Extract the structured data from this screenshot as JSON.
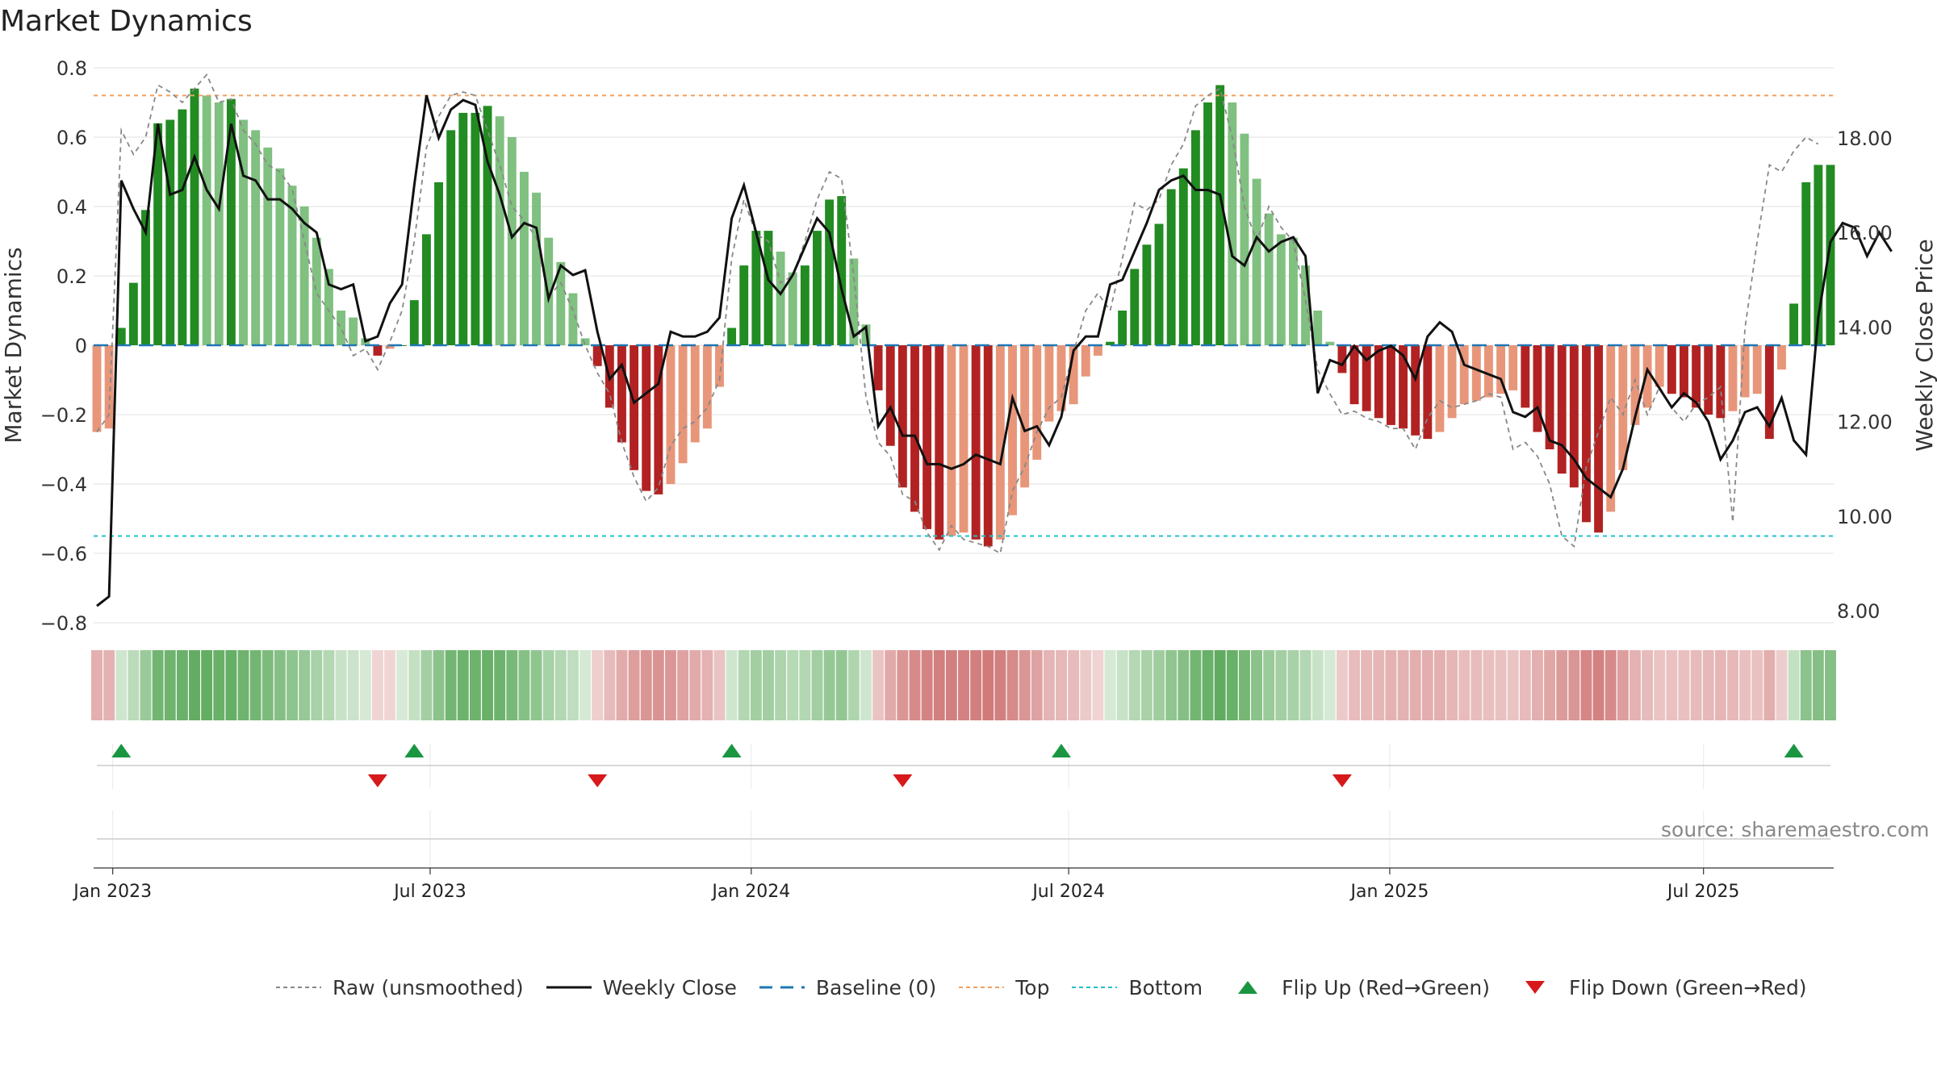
{
  "title": "Market Dynamics",
  "source": "source: sharemaestro.com",
  "colors": {
    "strong_green": "#228b22",
    "light_green": "#80c080",
    "strong_red": "#b22222",
    "light_red": "#e8967a",
    "close_line": "#111111",
    "raw_line": "#888888",
    "baseline": "#1f77b4",
    "top_line": "#f0a060",
    "bottom_line": "#22c0d0",
    "flip_up": "#1a9641",
    "flip_down": "#d7191c"
  },
  "legend": [
    {
      "key": "raw",
      "label": "Raw (unsmoothed)",
      "icon": "dashed-gray-line"
    },
    {
      "key": "close",
      "label": "Weekly Close",
      "icon": "solid-black-line"
    },
    {
      "key": "baseline",
      "label": "Baseline (0)",
      "icon": "dashed-blue-line"
    },
    {
      "key": "top",
      "label": "Top",
      "icon": "dotted-orange-line"
    },
    {
      "key": "bottom",
      "label": "Bottom",
      "icon": "dotted-cyan-line"
    },
    {
      "key": "flip_up",
      "label": "Flip Up (Red→Green)",
      "icon": "green-up-triangle"
    },
    {
      "key": "flip_down",
      "label": "Flip Down (Green→Red)",
      "icon": "red-down-triangle"
    }
  ],
  "chart_data": {
    "type": "bar",
    "title": "Market Dynamics",
    "ylabel": "Market Dynamics",
    "y2label": "Weekly Close Price",
    "ylim": [
      -0.8,
      0.8
    ],
    "y2lim": [
      8.0,
      19.0
    ],
    "yticks": [
      "0.8",
      "0.6",
      "0.4",
      "0.2",
      "0",
      "−0.2",
      "−0.4",
      "−0.6",
      "−0.8"
    ],
    "y2ticks": [
      "18.00",
      "16.00",
      "14.00",
      "12.00",
      "10.00",
      "8.00"
    ],
    "xticks": [
      "Jan 2023",
      "Jul 2023",
      "Jan 2024",
      "Jul 2024",
      "Jan 2025",
      "Jul 2025"
    ],
    "xtick_weeks": [
      1.3,
      27.3,
      53.6,
      79.6,
      105.9,
      131.6
    ],
    "top_level": 0.72,
    "bottom_level": -0.55,
    "baseline": 0,
    "grid": true,
    "legend_position": "bottom",
    "series": [
      {
        "name": "Market Dynamics",
        "values": [
          -0.25,
          -0.24,
          0.05,
          0.18,
          0.39,
          0.64,
          0.65,
          0.68,
          0.74,
          0.72,
          0.7,
          0.71,
          0.65,
          0.62,
          0.57,
          0.51,
          0.46,
          0.4,
          0.31,
          0.22,
          0.1,
          0.08,
          0.02,
          -0.03,
          -0.01,
          0.0,
          0.13,
          0.32,
          0.47,
          0.62,
          0.67,
          0.67,
          0.69,
          0.66,
          0.6,
          0.5,
          0.44,
          0.31,
          0.24,
          0.15,
          0.02,
          -0.06,
          -0.18,
          -0.28,
          -0.36,
          -0.42,
          -0.43,
          -0.4,
          -0.34,
          -0.28,
          -0.24,
          -0.12,
          0.05,
          0.23,
          0.33,
          0.33,
          0.27,
          0.21,
          0.23,
          0.33,
          0.42,
          0.43,
          0.25,
          0.06,
          -0.13,
          -0.29,
          -0.41,
          -0.48,
          -0.53,
          -0.56,
          -0.55,
          -0.54,
          -0.56,
          -0.58,
          -0.56,
          -0.49,
          -0.41,
          -0.33,
          -0.22,
          -0.19,
          -0.17,
          -0.09,
          -0.03,
          0.01,
          0.1,
          0.22,
          0.29,
          0.35,
          0.45,
          0.51,
          0.62,
          0.7,
          0.75,
          0.7,
          0.61,
          0.48,
          0.38,
          0.32,
          0.31,
          0.23,
          0.1,
          0.01,
          -0.08,
          -0.17,
          -0.19,
          -0.21,
          -0.23,
          -0.24,
          -0.26,
          -0.27,
          -0.25,
          -0.21,
          -0.17,
          -0.16,
          -0.15,
          -0.14,
          -0.13,
          -0.18,
          -0.25,
          -0.3,
          -0.37,
          -0.41,
          -0.51,
          -0.54,
          -0.48,
          -0.36,
          -0.23,
          -0.18,
          -0.12,
          -0.14,
          -0.15,
          -0.18,
          -0.2,
          -0.21,
          -0.19,
          -0.15,
          -0.14,
          -0.27,
          -0.07,
          0.12,
          0.47,
          0.52,
          0.52
        ]
      },
      {
        "name": "Weekly Close",
        "values": [
          8.1,
          8.3,
          17.1,
          16.5,
          16.0,
          18.3,
          16.8,
          16.9,
          17.6,
          16.9,
          16.5,
          18.3,
          17.2,
          17.1,
          16.7,
          16.7,
          16.5,
          16.2,
          16.0,
          14.9,
          14.8,
          14.9,
          13.7,
          13.8,
          14.5,
          14.9,
          17.0,
          18.9,
          18.0,
          18.6,
          18.8,
          18.7,
          17.5,
          16.8,
          15.9,
          16.2,
          16.1,
          14.6,
          15.3,
          15.1,
          15.2,
          13.9,
          12.9,
          13.2,
          12.4,
          12.6,
          12.8,
          13.9,
          13.8,
          13.8,
          13.9,
          14.2,
          16.3,
          17.0,
          16.0,
          15.0,
          14.7,
          15.1,
          15.7,
          16.3,
          16.0,
          14.8,
          13.8,
          14.0,
          11.9,
          12.3,
          11.7,
          11.7,
          11.1,
          11.1,
          11.0,
          11.1,
          11.3,
          11.2,
          11.1,
          12.5,
          11.8,
          11.9,
          11.5,
          12.1,
          13.5,
          13.8,
          13.8,
          14.9,
          15.0,
          15.6,
          16.2,
          16.9,
          17.1,
          17.2,
          16.9,
          16.9,
          16.8,
          15.5,
          15.3,
          15.9,
          15.6,
          15.8,
          15.9,
          15.5,
          12.6,
          13.3,
          13.2,
          13.6,
          13.3,
          13.5,
          13.6,
          13.4,
          12.9,
          13.8,
          14.1,
          13.9,
          13.2,
          13.1,
          13.0,
          12.9,
          12.2,
          12.1,
          12.3,
          11.6,
          11.5,
          11.2,
          10.8,
          10.6,
          10.4,
          11.0,
          12.1,
          13.1,
          12.7,
          12.3,
          12.6,
          12.4,
          12.0,
          11.2,
          11.6,
          12.2,
          12.3,
          11.9,
          12.5,
          11.6,
          11.3,
          14.2,
          15.8,
          16.2,
          16.1,
          15.5,
          16.0,
          15.6
        ]
      },
      {
        "name": "Raw (unsmoothed)",
        "values": [
          -0.25,
          -0.2,
          0.62,
          0.55,
          0.6,
          0.75,
          0.73,
          0.7,
          0.74,
          0.78,
          0.7,
          0.71,
          0.62,
          0.58,
          0.52,
          0.5,
          0.45,
          0.3,
          0.15,
          0.1,
          0.05,
          -0.03,
          -0.01,
          -0.07,
          0.01,
          0.1,
          0.3,
          0.57,
          0.66,
          0.72,
          0.73,
          0.72,
          0.62,
          0.52,
          0.4,
          0.36,
          0.31,
          0.14,
          0.18,
          0.1,
          0.0,
          -0.08,
          -0.14,
          -0.28,
          -0.38,
          -0.45,
          -0.41,
          -0.29,
          -0.24,
          -0.22,
          -0.18,
          -0.1,
          0.25,
          0.42,
          0.32,
          0.3,
          0.18,
          0.2,
          0.3,
          0.42,
          0.5,
          0.48,
          0.2,
          -0.15,
          -0.28,
          -0.32,
          -0.43,
          -0.45,
          -0.54,
          -0.59,
          -0.52,
          -0.56,
          -0.57,
          -0.58,
          -0.6,
          -0.42,
          -0.35,
          -0.25,
          -0.18,
          -0.15,
          -0.02,
          0.1,
          0.15,
          0.1,
          0.25,
          0.41,
          0.39,
          0.42,
          0.52,
          0.58,
          0.69,
          0.72,
          0.74,
          0.6,
          0.4,
          0.3,
          0.4,
          0.34,
          0.3,
          0.13,
          -0.07,
          -0.14,
          -0.2,
          -0.19,
          -0.21,
          -0.22,
          -0.24,
          -0.24,
          -0.3,
          -0.21,
          -0.16,
          -0.18,
          -0.17,
          -0.16,
          -0.14,
          -0.15,
          -0.3,
          -0.28,
          -0.32,
          -0.4,
          -0.55,
          -0.58,
          -0.35,
          -0.25,
          -0.15,
          -0.2,
          -0.1,
          -0.2,
          -0.12,
          -0.18,
          -0.22,
          -0.17,
          -0.15,
          -0.12,
          -0.51,
          0.05,
          0.3,
          0.52,
          0.5,
          0.56,
          0.6,
          0.58
        ]
      }
    ],
    "flip_up_weeks": [
      2,
      26,
      52,
      79,
      139
    ],
    "flip_down_weeks": [
      23,
      41,
      66,
      102
    ]
  }
}
